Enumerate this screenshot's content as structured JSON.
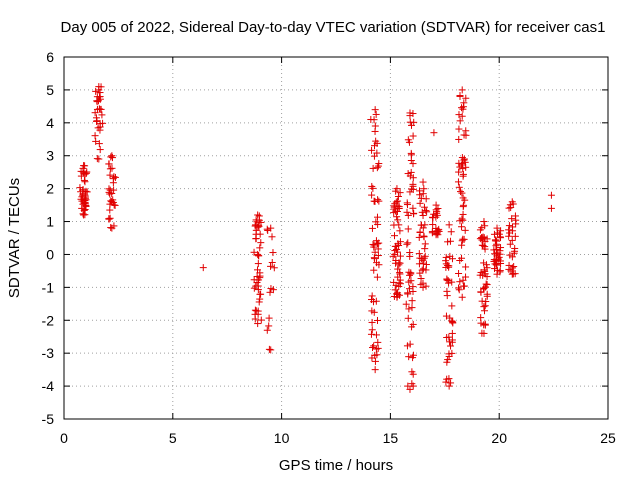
{
  "chart_data": {
    "type": "scatter",
    "title": "Day 005 of 2022, Sidereal Day-to-day VTEC variation (SDTVAR) for receiver cas1",
    "xlabel": "GPS time / hours",
    "ylabel": "SDTVAR / TECUs",
    "xlim": [
      0,
      25
    ],
    "ylim": [
      -5,
      6
    ],
    "xticks": [
      0,
      5,
      10,
      15,
      20,
      25
    ],
    "yticks": [
      -5,
      -4,
      -3,
      -2,
      -1,
      0,
      1,
      2,
      3,
      4,
      5,
      6
    ],
    "grid": true,
    "marker": "+",
    "color": "#e00000",
    "clusters": [
      {
        "x": 0.9,
        "ymin": 1.2,
        "ymax": 2.7,
        "n": 40
      },
      {
        "x": 1.6,
        "ymin": 2.9,
        "ymax": 5.1,
        "n": 30
      },
      {
        "x": 2.2,
        "ymin": 0.8,
        "ymax": 3.0,
        "n": 30
      },
      {
        "x": 8.9,
        "ymin": -2.1,
        "ymax": 1.2,
        "n": 45
      },
      {
        "x": 9.5,
        "ymin": -2.9,
        "ymax": 0.8,
        "n": 14
      },
      {
        "x": 14.3,
        "ymin": -3.5,
        "ymax": 4.4,
        "n": 60
      },
      {
        "x": 15.3,
        "ymin": -1.3,
        "ymax": 2.0,
        "n": 55
      },
      {
        "x": 15.9,
        "ymin": -4.1,
        "ymax": 4.3,
        "n": 60
      },
      {
        "x": 16.5,
        "ymin": -1.0,
        "ymax": 2.2,
        "n": 40
      },
      {
        "x": 17.1,
        "ymin": 0.6,
        "ymax": 1.5,
        "n": 20
      },
      {
        "x": 17.7,
        "ymin": -4.0,
        "ymax": 0.9,
        "n": 40
      },
      {
        "x": 18.3,
        "ymin": -1.3,
        "ymax": 5.0,
        "n": 55
      },
      {
        "x": 19.3,
        "ymin": -2.4,
        "ymax": 1.0,
        "n": 45
      },
      {
        "x": 19.9,
        "ymin": -0.6,
        "ymax": 0.8,
        "n": 35
      },
      {
        "x": 20.6,
        "ymin": -0.6,
        "ymax": 1.6,
        "n": 30
      }
    ],
    "points": [
      {
        "x": 6.4,
        "y": -0.4
      },
      {
        "x": 22.4,
        "y": 1.8
      },
      {
        "x": 22.4,
        "y": 1.4
      },
      {
        "x": 17.0,
        "y": 3.7
      },
      {
        "x": 18.3,
        "y": 4.2
      },
      {
        "x": 18.4,
        "y": 2.9
      },
      {
        "x": 14.1,
        "y": 4.1
      },
      {
        "x": 15.8,
        "y": -4.0
      },
      {
        "x": 17.7,
        "y": -3.1
      }
    ]
  }
}
